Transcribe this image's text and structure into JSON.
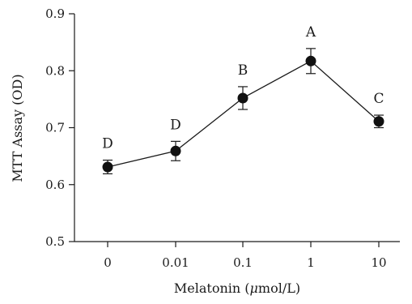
{
  "chart_data": {
    "type": "line",
    "title": "",
    "xlabel": "Melatonin (μmol/L)",
    "ylabel": "MTT Assay (OD)",
    "categories": [
      "0",
      "0.01",
      "0.1",
      "1",
      "10"
    ],
    "ylim": [
      0.5,
      0.9
    ],
    "yticks": [
      "0.5",
      "0.6",
      "0.7",
      "0.8",
      "0.9"
    ],
    "grid": false,
    "series": [
      {
        "values": [
          0.631,
          0.659,
          0.752,
          0.817,
          0.711
        ],
        "errors": [
          0.012,
          0.017,
          0.02,
          0.022,
          0.011
        ],
        "labels": [
          "D",
          "D",
          "B",
          "A",
          "C"
        ],
        "color": "#111111",
        "marker": "filled-circle"
      }
    ]
  }
}
